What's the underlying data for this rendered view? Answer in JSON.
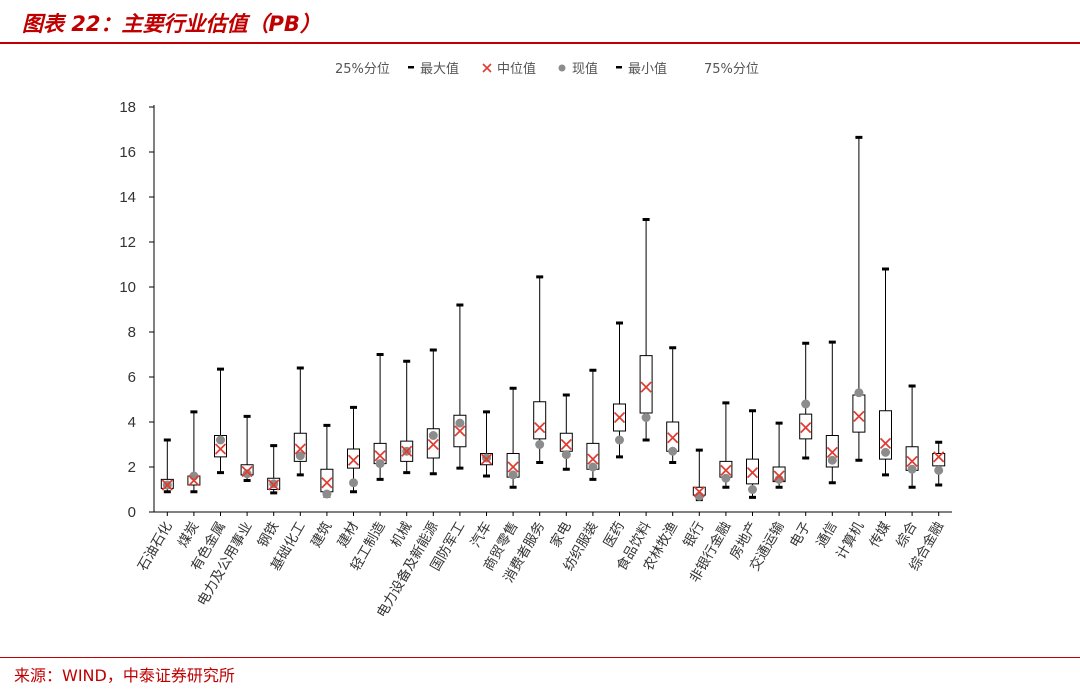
{
  "header": {
    "title": "图表 22：主要行业估值（PB）"
  },
  "footer": {
    "source": "来源：WIND，中泰证券研究所"
  },
  "colors": {
    "brand": "#c00000",
    "median_marker": "#e03c31",
    "current_marker": "#8c8c8c",
    "line": "#000000"
  },
  "chart_data": {
    "type": "boxplot",
    "title": "",
    "xlabel": "",
    "ylabel": "",
    "ylim": [
      0,
      18
    ],
    "yticks": [
      "0",
      "2",
      "4",
      "6",
      "8",
      "10",
      "12",
      "14",
      "16",
      "18"
    ],
    "legend": {
      "placement": "top",
      "items": [
        "25%分位",
        "最大值",
        "中位值",
        "现值",
        "最小值",
        "75%分位"
      ]
    },
    "categories": [
      "石油石化",
      "煤炭",
      "有色金属",
      "电力及公用事业",
      "钢铁",
      "基础化工",
      "建筑",
      "建材",
      "轻工制造",
      "机械",
      "电力设备及新能源",
      "国防军工",
      "汽车",
      "商贸零售",
      "消费者服务",
      "家电",
      "纺织服装",
      "医药",
      "食品饮料",
      "农林牧渔",
      "银行",
      "非银行金融",
      "房地产",
      "交通运输",
      "电子",
      "通信",
      "计算机",
      "传媒",
      "综合",
      "综合金融"
    ],
    "series": [
      {
        "name": "最大值",
        "values": [
          3.2,
          4.45,
          6.35,
          4.25,
          2.95,
          6.4,
          3.85,
          4.65,
          7.0,
          6.7,
          7.2,
          9.2,
          4.45,
          5.5,
          10.45,
          5.2,
          6.3,
          8.4,
          13.0,
          7.3,
          2.75,
          4.85,
          4.5,
          3.95,
          7.5,
          7.55,
          16.65,
          10.8,
          5.6,
          3.1
        ]
      },
      {
        "name": "75%分位",
        "values": [
          1.45,
          1.6,
          3.4,
          2.1,
          1.5,
          3.5,
          1.9,
          2.8,
          3.05,
          3.15,
          3.7,
          4.3,
          2.6,
          2.6,
          4.9,
          3.5,
          3.05,
          4.8,
          6.95,
          4.0,
          1.1,
          2.25,
          2.35,
          2.0,
          4.35,
          3.4,
          5.2,
          4.5,
          2.9,
          2.6
        ]
      },
      {
        "name": "中位值",
        "values": [
          1.2,
          1.4,
          2.8,
          1.8,
          1.2,
          2.8,
          1.3,
          2.3,
          2.5,
          2.7,
          3.0,
          3.6,
          2.35,
          2.0,
          3.75,
          3.0,
          2.35,
          4.2,
          5.55,
          3.3,
          0.9,
          1.85,
          1.75,
          1.6,
          3.75,
          2.65,
          4.25,
          3.05,
          2.25,
          2.45
        ]
      },
      {
        "name": "现值",
        "values": [
          1.2,
          1.6,
          3.2,
          1.7,
          1.25,
          2.5,
          0.8,
          1.3,
          2.15,
          2.7,
          3.4,
          3.95,
          2.4,
          1.65,
          3.0,
          2.55,
          2.0,
          3.2,
          4.2,
          2.7,
          0.7,
          1.5,
          1.0,
          1.45,
          4.8,
          2.3,
          5.3,
          2.65,
          1.9,
          1.85
        ]
      },
      {
        "name": "25%分位",
        "values": [
          1.05,
          1.2,
          2.45,
          1.65,
          1.0,
          2.25,
          0.9,
          1.95,
          2.15,
          2.25,
          2.4,
          2.9,
          2.1,
          1.55,
          3.25,
          2.7,
          1.9,
          3.6,
          4.4,
          2.7,
          0.75,
          1.55,
          1.25,
          1.35,
          3.25,
          2.0,
          3.55,
          2.35,
          1.85,
          2.05
        ]
      },
      {
        "name": "最小值",
        "values": [
          0.9,
          0.9,
          1.75,
          1.4,
          0.85,
          1.65,
          0.7,
          0.9,
          1.45,
          1.75,
          1.7,
          1.95,
          1.6,
          1.1,
          2.2,
          1.9,
          1.45,
          2.45,
          3.2,
          2.2,
          0.55,
          1.1,
          0.65,
          1.1,
          2.4,
          1.3,
          2.3,
          1.65,
          1.1,
          1.2
        ]
      }
    ]
  }
}
